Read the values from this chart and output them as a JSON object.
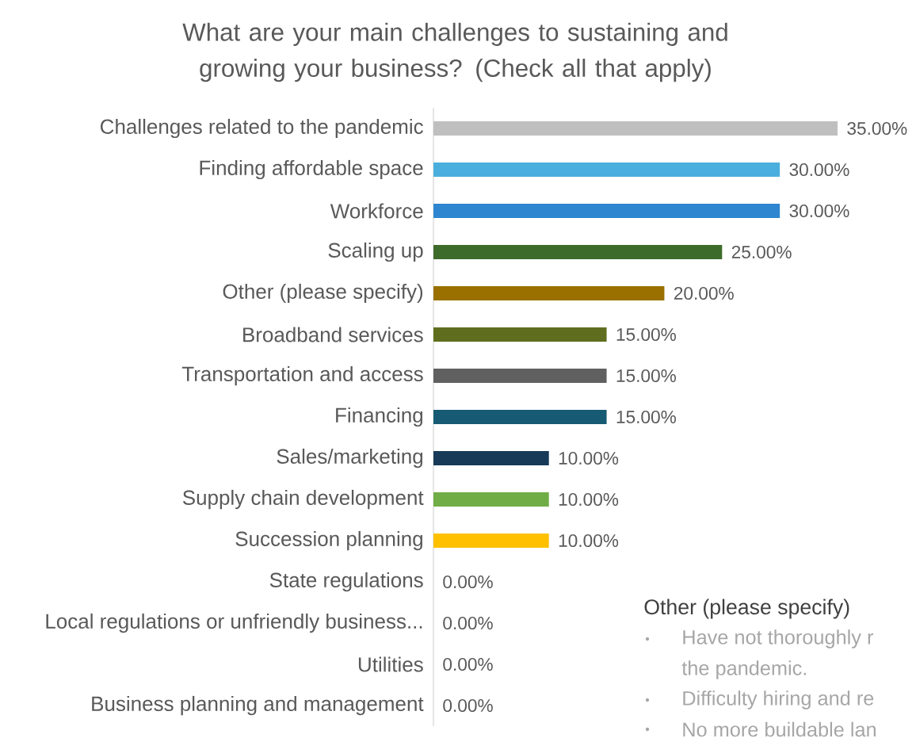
{
  "chart_data": {
    "type": "bar",
    "orientation": "horizontal",
    "title": "What are your main challenges to sustaining and growing your business? (Check all that apply)",
    "categories": [
      "Challenges related to the pandemic",
      "Finding affordable space",
      "Workforce",
      "Scaling up",
      "Other (please specify)",
      "Broadband services",
      "Transportation and access",
      "Financing",
      "Sales/marketing",
      "Supply chain development",
      "Succession planning",
      "State regulations",
      "Local regulations or unfriendly business...",
      "Utilities",
      "Business planning and management"
    ],
    "values": [
      35,
      30,
      30,
      25,
      20,
      15,
      15,
      15,
      10,
      10,
      10,
      0,
      0,
      0,
      0
    ],
    "colors": [
      "#bfbfbf",
      "#4bafdd",
      "#2e86d0",
      "#3d6b2a",
      "#9a7000",
      "#5f6e1e",
      "#606060",
      "#175a73",
      "#163a57",
      "#70ad47",
      "#ffc000",
      "#a5a5a5",
      "#a5a5a5",
      "#a5a5a5",
      "#a5a5a5"
    ],
    "value_labels": [
      "35.00%",
      "30.00%",
      "30.00%",
      "25.00%",
      "20.00%",
      "15.00%",
      "15.00%",
      "15.00%",
      "10.00%",
      "10.00%",
      "10.00%",
      "0.00%",
      "0.00%",
      "0.00%",
      "0.00%"
    ],
    "annotations": [
      "Other (please specify)",
      "Have not thoroughly r",
      "the pandemic.",
      "Difficulty hiring and re",
      "No more buildable lan"
    ]
  }
}
